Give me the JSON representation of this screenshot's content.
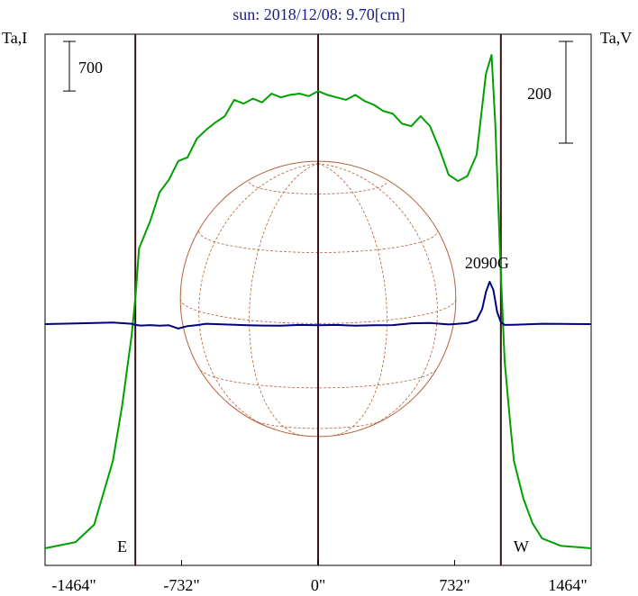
{
  "chart_data": {
    "type": "line",
    "title": "sun: 2018/12/08: 9.70[cm]",
    "y_left_label": "Ta,I",
    "y_right_label": "Ta,V",
    "x_tick_labels": [
      "-1464\"",
      "-732\"",
      "0\"",
      "732\"",
      "1464\""
    ],
    "x_ticks": [
      -1464,
      -732,
      0,
      732,
      1464
    ],
    "xlim": [
      -1464,
      1464
    ],
    "limb_labels": {
      "east": "E",
      "west": "W"
    },
    "limb_positions": [
      -980,
      980
    ],
    "disk_radius": 980,
    "scale_bars": [
      {
        "axis": "I",
        "label": "700",
        "value": 700
      },
      {
        "axis": "V",
        "label": "200",
        "value": 200
      }
    ],
    "annotation": {
      "label": "2090G",
      "x": 920
    },
    "series": [
      {
        "axis": "I",
        "color": "#00a000",
        "x": [
          -1464,
          -1300,
          -1200,
          -1100,
          -1050,
          -1000,
          -980,
          -960,
          -900,
          -850,
          -800,
          -750,
          -700,
          -650,
          -600,
          -550,
          -500,
          -450,
          -400,
          -350,
          -300,
          -250,
          -200,
          -150,
          -100,
          -50,
          0,
          50,
          100,
          150,
          200,
          250,
          300,
          350,
          400,
          450,
          500,
          550,
          600,
          650,
          700,
          750,
          800,
          850,
          900,
          930,
          950,
          980,
          1000,
          1030,
          1050,
          1100,
          1150,
          1200,
          1300,
          1464
        ],
        "values": [
          0,
          50,
          190,
          700,
          1150,
          1700,
          2000,
          2400,
          2620,
          2850,
          2950,
          3100,
          3130,
          3280,
          3350,
          3410,
          3460,
          3590,
          3560,
          3600,
          3570,
          3640,
          3610,
          3630,
          3640,
          3620,
          3660,
          3630,
          3610,
          3590,
          3630,
          3580,
          3550,
          3500,
          3480,
          3400,
          3380,
          3460,
          3380,
          3200,
          2990,
          2940,
          2980,
          3150,
          3800,
          3950,
          3400,
          2200,
          1500,
          1000,
          700,
          400,
          200,
          80,
          20,
          0
        ]
      },
      {
        "axis": "V",
        "color": "#000080",
        "x": [
          -1464,
          -1300,
          -1100,
          -1000,
          -980,
          -950,
          -900,
          -850,
          -800,
          -750,
          -700,
          -650,
          -600,
          -500,
          -400,
          -300,
          -200,
          -100,
          0,
          100,
          200,
          300,
          400,
          500,
          600,
          700,
          800,
          850,
          880,
          900,
          920,
          940,
          960,
          980,
          1000,
          1050,
          1100,
          1200,
          1300,
          1464
        ],
        "values": [
          0,
          3,
          8,
          2,
          -4,
          -7,
          -5,
          -8,
          -6,
          -22,
          -10,
          -5,
          2,
          -2,
          -5,
          -7,
          -8,
          -4,
          -6,
          -4,
          -8,
          -6,
          -5,
          4,
          6,
          -2,
          5,
          20,
          75,
          160,
          210,
          170,
          60,
          10,
          -4,
          -3,
          -2,
          2,
          1,
          0
        ]
      }
    ]
  }
}
